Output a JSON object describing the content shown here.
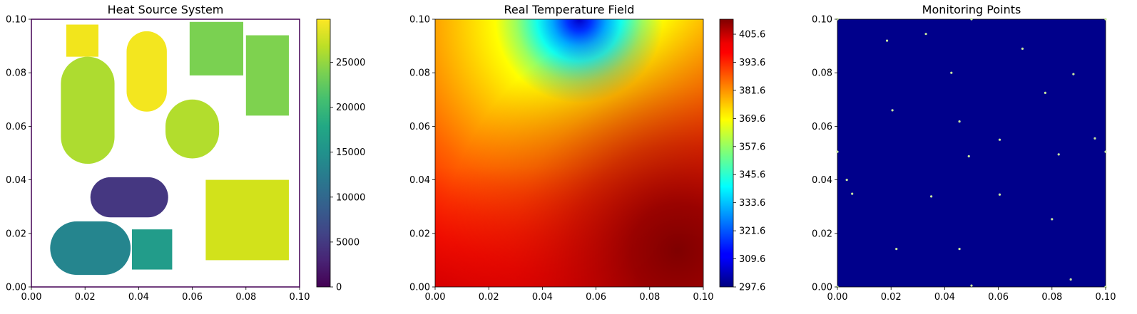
{
  "chart_data": [
    {
      "type": "heatmap",
      "title": "Heat Source System",
      "xlabel": "",
      "ylabel": "",
      "xlim": [
        0,
        0.1
      ],
      "ylim": [
        0,
        0.1
      ],
      "x_ticks": [
        "0.00",
        "0.02",
        "0.04",
        "0.06",
        "0.08",
        "0.10"
      ],
      "y_ticks": [
        "0.00",
        "0.02",
        "0.04",
        "0.06",
        "0.08",
        "0.10"
      ],
      "colormap": "viridis",
      "background": "#ffffff",
      "colorbar": {
        "range": [
          0,
          29800
        ],
        "ticks": [
          "0",
          "5000",
          "10000",
          "15000",
          "20000",
          "25000"
        ]
      },
      "sources": [
        {
          "shape": "rect",
          "x0": 0.013,
          "x1": 0.025,
          "y0": 0.086,
          "y1": 0.098,
          "value": 29000,
          "color": "#f2e51c"
        },
        {
          "shape": "stadium",
          "x0": 0.0355,
          "x1": 0.0505,
          "y0": 0.0655,
          "y1": 0.0955,
          "value": 29300,
          "color": "#f3e61f"
        },
        {
          "shape": "rect",
          "x0": 0.059,
          "x1": 0.079,
          "y0": 0.079,
          "y1": 0.099,
          "value": 23000,
          "color": "#7ad151"
        },
        {
          "shape": "rect",
          "x0": 0.08,
          "x1": 0.096,
          "y0": 0.064,
          "y1": 0.094,
          "value": 23200,
          "color": "#7ed24f"
        },
        {
          "shape": "stadium",
          "x0": 0.011,
          "x1": 0.031,
          "y0": 0.046,
          "y1": 0.086,
          "value": 25800,
          "color": "#addc30"
        },
        {
          "shape": "stadium",
          "x0": 0.05,
          "x1": 0.07,
          "y0": 0.048,
          "y1": 0.07,
          "value": 26200,
          "color": "#b2dd2d"
        },
        {
          "shape": "stadium",
          "x0": 0.022,
          "x1": 0.051,
          "y0": 0.026,
          "y1": 0.041,
          "value": 3800,
          "color": "#453781"
        },
        {
          "shape": "rect",
          "x0": 0.065,
          "x1": 0.096,
          "y0": 0.01,
          "y1": 0.04,
          "value": 27800,
          "color": "#d2e21b"
        },
        {
          "shape": "stadium",
          "x0": 0.007,
          "x1": 0.037,
          "y0": 0.0045,
          "y1": 0.0245,
          "value": 16500,
          "color": "#25858e"
        },
        {
          "shape": "rect",
          "x0": 0.0375,
          "x1": 0.0525,
          "y0": 0.0065,
          "y1": 0.0215,
          "value": 17200,
          "color": "#229c8a"
        }
      ]
    },
    {
      "type": "heatmap",
      "title": "Real Temperature Field",
      "xlabel": "",
      "ylabel": "",
      "xlim": [
        0,
        0.1
      ],
      "ylim": [
        0,
        0.1
      ],
      "x_ticks": [
        "0.00",
        "0.02",
        "0.04",
        "0.06",
        "0.08",
        "0.10"
      ],
      "y_ticks": [
        "0.00",
        "0.02",
        "0.04",
        "0.06",
        "0.08",
        "0.10"
      ],
      "colormap": "jet",
      "colorbar": {
        "range": [
          297.6,
          412.0
        ],
        "ticks": [
          "297.6",
          "309.6",
          "321.6",
          "333.6",
          "345.6",
          "357.6",
          "369.6",
          "381.6",
          "393.6",
          "405.6"
        ]
      },
      "field": {
        "cold_spot": {
          "x": 0.05,
          "y": 0.1,
          "value": 297.6
        },
        "hot_spot": {
          "x": 0.09,
          "y": 0.013,
          "value": 412.0
        }
      }
    },
    {
      "type": "scatter",
      "title": "Monitoring Points",
      "xlabel": "",
      "ylabel": "",
      "xlim": [
        0,
        0.1
      ],
      "ylim": [
        0,
        0.1
      ],
      "x_ticks": [
        "0.00",
        "0.02",
        "0.04",
        "0.06",
        "0.08",
        "0.10"
      ],
      "y_ticks": [
        "0.00",
        "0.02",
        "0.04",
        "0.06",
        "0.08",
        "0.10"
      ],
      "background": "#00008b",
      "marker_color": "#c8e6a0",
      "points": [
        {
          "x": 0.0,
          "y": 0.1
        },
        {
          "x": 0.05,
          "y": 0.1
        },
        {
          "x": 0.1,
          "y": 0.1
        },
        {
          "x": 0.033,
          "y": 0.0945
        },
        {
          "x": 0.0185,
          "y": 0.092
        },
        {
          "x": 0.069,
          "y": 0.089
        },
        {
          "x": 0.0425,
          "y": 0.08
        },
        {
          "x": 0.088,
          "y": 0.0795
        },
        {
          "x": 0.0775,
          "y": 0.0725
        },
        {
          "x": 0.0205,
          "y": 0.066
        },
        {
          "x": 0.0455,
          "y": 0.0618
        },
        {
          "x": 0.096,
          "y": 0.0555
        },
        {
          "x": 0.0605,
          "y": 0.055
        },
        {
          "x": 0.0,
          "y": 0.0505
        },
        {
          "x": 0.0825,
          "y": 0.0495
        },
        {
          "x": 0.049,
          "y": 0.0488
        },
        {
          "x": 0.1,
          "y": 0.0505
        },
        {
          "x": 0.0035,
          "y": 0.04
        },
        {
          "x": 0.0055,
          "y": 0.0348
        },
        {
          "x": 0.0605,
          "y": 0.0345
        },
        {
          "x": 0.035,
          "y": 0.0338
        },
        {
          "x": 0.08,
          "y": 0.0253
        },
        {
          "x": 0.022,
          "y": 0.0142
        },
        {
          "x": 0.0455,
          "y": 0.0142
        },
        {
          "x": 0.087,
          "y": 0.0028
        },
        {
          "x": 0.05,
          "y": 0.0005
        },
        {
          "x": 0.0,
          "y": 0.0
        },
        {
          "x": 0.1,
          "y": 0.0
        }
      ]
    }
  ]
}
